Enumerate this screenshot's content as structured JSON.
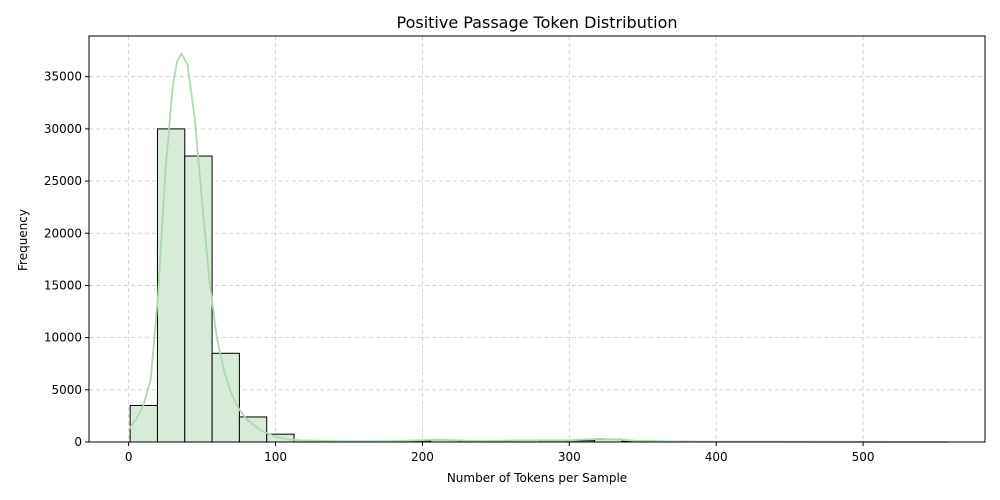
{
  "chart_data": {
    "type": "bar",
    "title": "Positive Passage Token Distribution",
    "xlabel": "Number of Tokens per Sample",
    "ylabel": "Frequency",
    "xlim": [
      -27,
      583
    ],
    "ylim": [
      0,
      38900
    ],
    "xticks": [
      0,
      100,
      200,
      300,
      400,
      500
    ],
    "yticks": [
      0,
      5000,
      10000,
      15000,
      20000,
      25000,
      30000,
      35000
    ],
    "grid": true,
    "bar_fill": "#d8ebd8",
    "bar_edge": "#000000",
    "kde_color": "#b0d8b0",
    "bins": [
      {
        "start": 1,
        "end": 19.6,
        "count": 3500
      },
      {
        "start": 19.6,
        "end": 38.2,
        "count": 30000
      },
      {
        "start": 38.2,
        "end": 56.8,
        "count": 27400
      },
      {
        "start": 56.8,
        "end": 75.4,
        "count": 8500
      },
      {
        "start": 75.4,
        "end": 94,
        "count": 2400
      },
      {
        "start": 94,
        "end": 112.6,
        "count": 750
      },
      {
        "start": 112.6,
        "end": 131.2,
        "count": 150
      },
      {
        "start": 131.2,
        "end": 149.8,
        "count": 80
      },
      {
        "start": 149.8,
        "end": 168.4,
        "count": 70
      },
      {
        "start": 168.4,
        "end": 187,
        "count": 50
      },
      {
        "start": 187,
        "end": 205.6,
        "count": 110
      },
      {
        "start": 205.6,
        "end": 224.2,
        "count": 190
      },
      {
        "start": 224.2,
        "end": 242.8,
        "count": 60
      },
      {
        "start": 242.8,
        "end": 261.4,
        "count": 90
      },
      {
        "start": 261.4,
        "end": 280,
        "count": 150
      },
      {
        "start": 280,
        "end": 298.6,
        "count": 130
      },
      {
        "start": 298.6,
        "end": 317.2,
        "count": 120
      },
      {
        "start": 317.2,
        "end": 335.8,
        "count": 260
      },
      {
        "start": 335.8,
        "end": 354.4,
        "count": 90
      },
      {
        "start": 354.4,
        "end": 373,
        "count": 50
      },
      {
        "start": 373,
        "end": 391.6,
        "count": 40
      },
      {
        "start": 391.6,
        "end": 410.2,
        "count": 30
      },
      {
        "start": 410.2,
        "end": 428.8,
        "count": 25
      },
      {
        "start": 428.8,
        "end": 447.4,
        "count": 20
      },
      {
        "start": 447.4,
        "end": 466,
        "count": 15
      },
      {
        "start": 466,
        "end": 484.6,
        "count": 10
      },
      {
        "start": 484.6,
        "end": 503.2,
        "count": 8
      },
      {
        "start": 503.2,
        "end": 521.8,
        "count": 6
      },
      {
        "start": 521.8,
        "end": 540.4,
        "count": 5
      },
      {
        "start": 540.4,
        "end": 559,
        "count": 4
      }
    ],
    "kde": [
      [
        0,
        1200
      ],
      [
        5,
        2200
      ],
      [
        10,
        3500
      ],
      [
        15,
        6000
      ],
      [
        20,
        14000
      ],
      [
        25,
        26000
      ],
      [
        30,
        34000
      ],
      [
        33,
        36500
      ],
      [
        36,
        37200
      ],
      [
        40,
        36200
      ],
      [
        45,
        31000
      ],
      [
        50,
        23000
      ],
      [
        55,
        15500
      ],
      [
        60,
        10000
      ],
      [
        65,
        6800
      ],
      [
        70,
        4600
      ],
      [
        75,
        3200
      ],
      [
        80,
        2200
      ],
      [
        90,
        1100
      ],
      [
        100,
        500
      ],
      [
        110,
        220
      ],
      [
        120,
        120
      ],
      [
        140,
        80
      ],
      [
        160,
        70
      ],
      [
        180,
        90
      ],
      [
        200,
        180
      ],
      [
        210,
        230
      ],
      [
        220,
        170
      ],
      [
        240,
        90
      ],
      [
        260,
        140
      ],
      [
        280,
        160
      ],
      [
        300,
        160
      ],
      [
        320,
        300
      ],
      [
        330,
        260
      ],
      [
        345,
        120
      ],
      [
        370,
        60
      ],
      [
        400,
        40
      ],
      [
        450,
        25
      ],
      [
        500,
        15
      ],
      [
        540,
        10
      ],
      [
        558,
        6
      ]
    ]
  }
}
